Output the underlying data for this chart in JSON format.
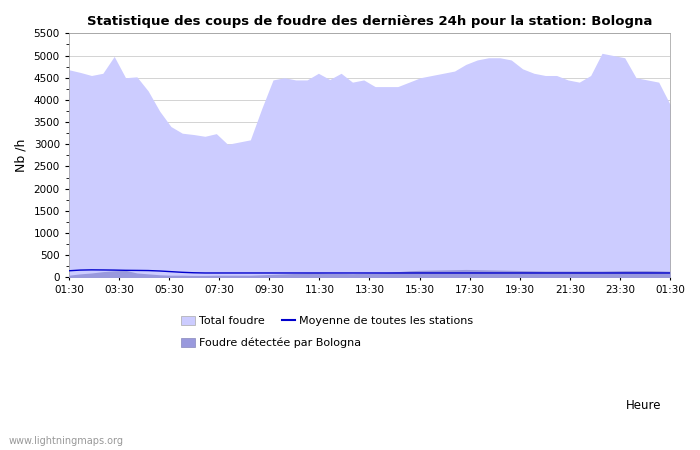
{
  "title": "Statistique des coups de foudre des dernières 24h pour la station: Bologna",
  "xlabel": "Heure",
  "ylabel": "Nb /h",
  "ylim": [
    0,
    5500
  ],
  "yticks": [
    0,
    500,
    1000,
    1500,
    2000,
    2500,
    3000,
    3500,
    4000,
    4500,
    5000,
    5500
  ],
  "xtick_labels": [
    "01:30",
    "03:30",
    "05:30",
    "07:30",
    "09:30",
    "11:30",
    "13:30",
    "15:30",
    "17:30",
    "19:30",
    "21:30",
    "23:30",
    "01:30"
  ],
  "watermark": "www.lightningmaps.org",
  "bg_color": "#ffffff",
  "plot_bg_color": "#ffffff",
  "grid_color": "#cccccc",
  "fill_total_color": "#ccccff",
  "fill_bologna_color": "#9999dd",
  "line_mean_color": "#0000cc",
  "total_foudre": [
    4680,
    4620,
    4550,
    4600,
    4980,
    4500,
    4520,
    4200,
    3750,
    3400,
    3250,
    3220,
    3180,
    3240,
    3000,
    3050,
    3100,
    3800,
    4450,
    4500,
    4450,
    4450,
    4600,
    4460,
    4600,
    4400,
    4450,
    4300,
    4300,
    4300,
    4400,
    4500,
    4550,
    4600,
    4650,
    4800,
    4900,
    4950,
    4950,
    4900,
    4700,
    4600,
    4550,
    4550,
    4450,
    4400,
    4550,
    5050,
    5000,
    4950,
    4500,
    4450,
    4400,
    3900
  ],
  "bologna_foudre": [
    50,
    80,
    100,
    130,
    150,
    160,
    100,
    80,
    60,
    50,
    50,
    45,
    45,
    50,
    50,
    50,
    50,
    60,
    70,
    80,
    90,
    100,
    100,
    90,
    90,
    85,
    95,
    100,
    110,
    130,
    150,
    160,
    165,
    170,
    175,
    180,
    175,
    170,
    165,
    160,
    155,
    150,
    145,
    145,
    145,
    145,
    145,
    145,
    150,
    155,
    155,
    155,
    150,
    140
  ],
  "mean_line": [
    150,
    165,
    170,
    168,
    165,
    160,
    158,
    155,
    145,
    130,
    115,
    105,
    100,
    100,
    100,
    100,
    100,
    100,
    100,
    100,
    100,
    100,
    100,
    100,
    100,
    100,
    100,
    100,
    100,
    100,
    100,
    100,
    100,
    100,
    100,
    100,
    100,
    100,
    100,
    100,
    100,
    100,
    100,
    100,
    100,
    100,
    100,
    100,
    100,
    100,
    100,
    100,
    100,
    100
  ]
}
